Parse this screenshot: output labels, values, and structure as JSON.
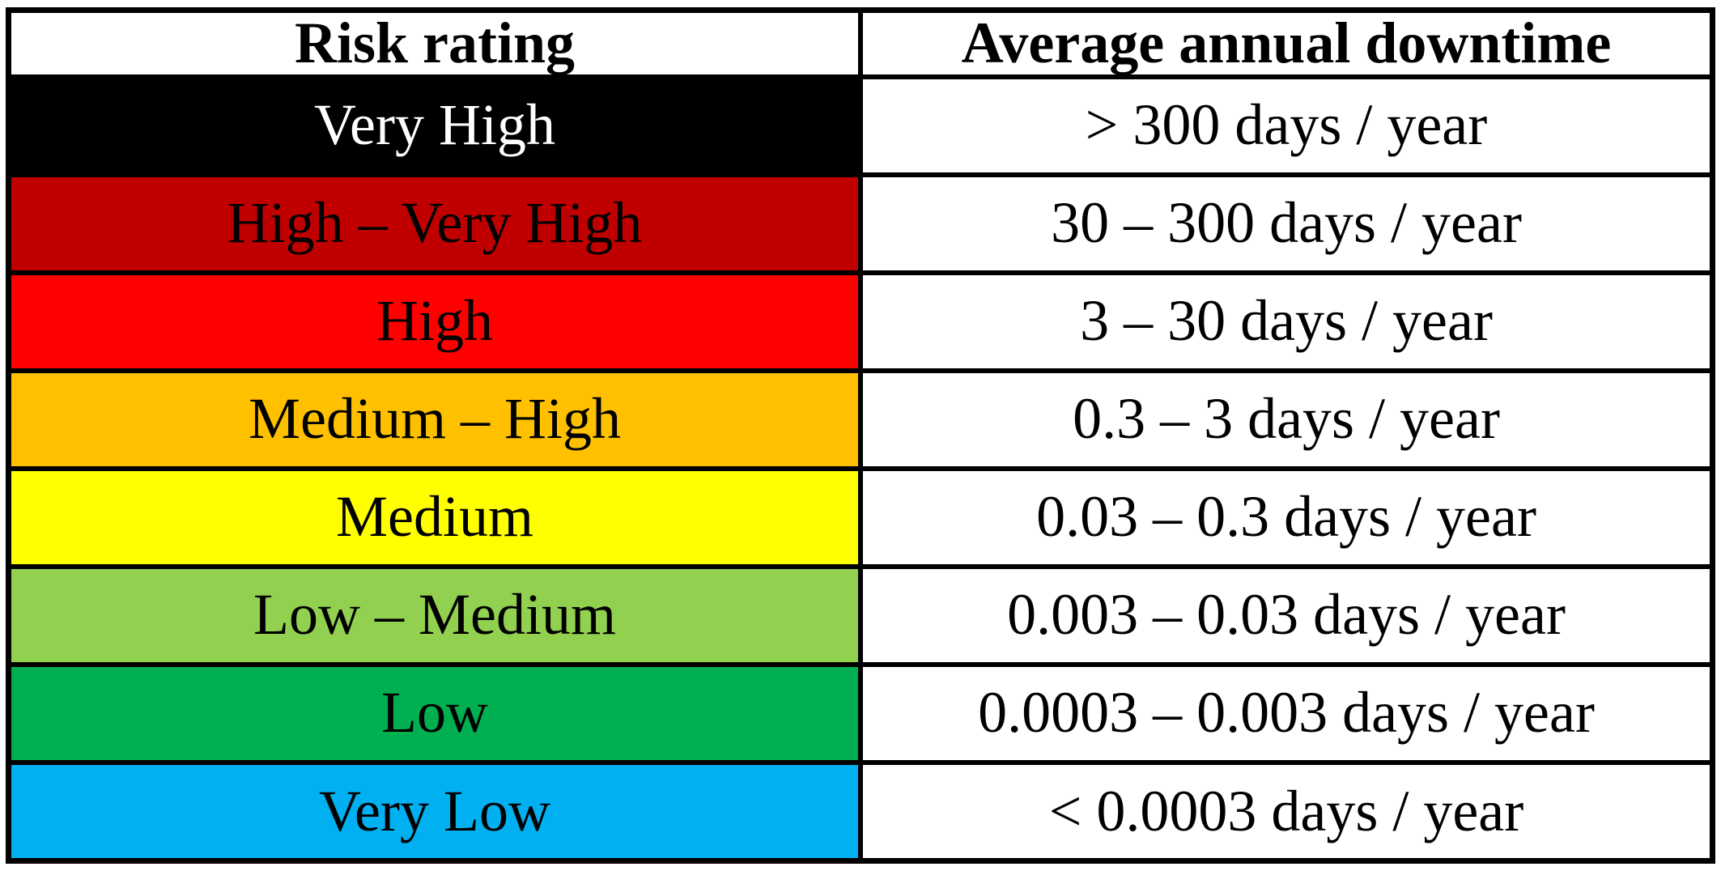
{
  "table": {
    "columns": [
      "Risk rating",
      "Average annual downtime"
    ],
    "rows": [
      {
        "rating": "Very High",
        "downtime": "> 300 days / year",
        "color": "#000000",
        "text_color": "#FFFFFF"
      },
      {
        "rating": "High – Very High",
        "downtime": "30 – 300 days / year",
        "color": "#C00000",
        "text_color": "#000000"
      },
      {
        "rating": "High",
        "downtime": "3 – 30 days / year",
        "color": "#FF0000",
        "text_color": "#000000"
      },
      {
        "rating": "Medium – High",
        "downtime": "0.3 – 3 days / year",
        "color": "#FFC000",
        "text_color": "#000000"
      },
      {
        "rating": "Medium",
        "downtime": "0.03 – 0.3 days / year",
        "color": "#FFFF00",
        "text_color": "#000000"
      },
      {
        "rating": "Low – Medium",
        "downtime": "0.003 – 0.03 days / year",
        "color": "#92D050",
        "text_color": "#000000"
      },
      {
        "rating": "Low",
        "downtime": "0.0003 – 0.003 days / year",
        "color": "#00B050",
        "text_color": "#000000"
      },
      {
        "rating": "Very Low",
        "downtime": "< 0.0003 days / year",
        "color": "#00B0F0",
        "text_color": "#000000"
      }
    ],
    "border_color": "#000000",
    "header_bg": "#FFFFFF",
    "value_cell_bg": "#FFFFFF"
  },
  "chart_data": {
    "type": "table",
    "title": "",
    "columns": [
      "Risk rating",
      "Average annual downtime"
    ],
    "rows": [
      [
        "Very High",
        "> 300 days / year"
      ],
      [
        "High – Very High",
        "30 – 300 days / year"
      ],
      [
        "High",
        "3 – 30 days / year"
      ],
      [
        "Medium – High",
        "0.3 – 3 days / year"
      ],
      [
        "Medium",
        "0.03 – 0.3 days / year"
      ],
      [
        "Low – Medium",
        "0.003 – 0.03 days / year"
      ],
      [
        "Low",
        "0.0003 – 0.003 days / year"
      ],
      [
        "Very Low",
        "< 0.0003 days / year"
      ]
    ],
    "row_colors": [
      "#000000",
      "#C00000",
      "#FF0000",
      "#FFC000",
      "#FFFF00",
      "#92D050",
      "#00B050",
      "#00B0F0"
    ],
    "header_style": "bold, white background, black text",
    "grid": "all black borders"
  }
}
